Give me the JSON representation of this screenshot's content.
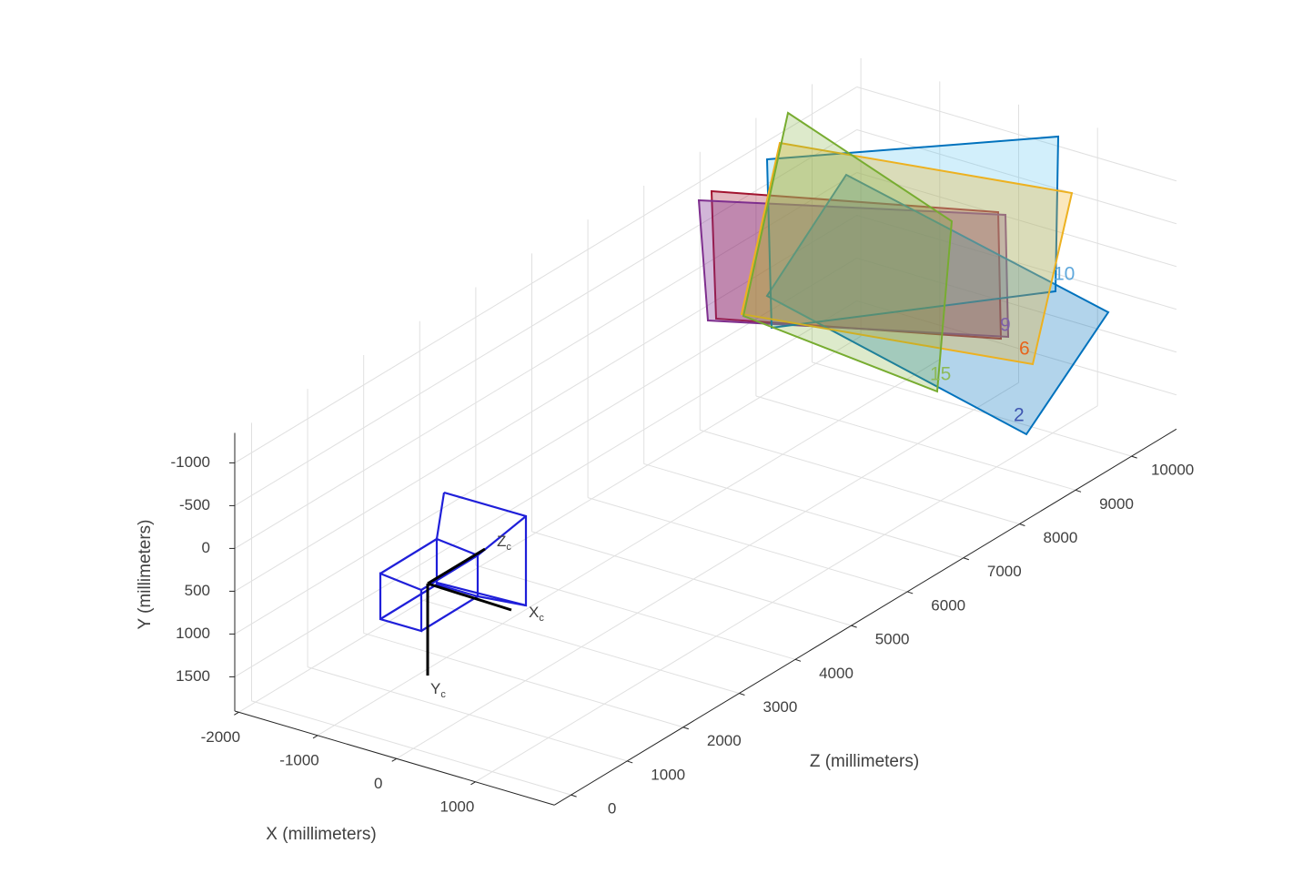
{
  "chart_data": {
    "type": "3d",
    "xlabel": "X (millimeters)",
    "ylabel": "Y (millimeters)",
    "zlabel": "Z (millimeters)",
    "xlim": [
      -2050,
      2000
    ],
    "ylim": [
      -1350,
      1900
    ],
    "zlim": [
      -300,
      10800
    ],
    "xticks": [
      -2000,
      -1000,
      0,
      1000
    ],
    "yticks": [
      -1000,
      -500,
      0,
      500,
      1000,
      1500
    ],
    "zticks": [
      0,
      1000,
      2000,
      3000,
      4000,
      5000,
      6000,
      7000,
      8000,
      9000,
      10000
    ],
    "grid": true,
    "camera_axes": [
      {
        "label": "X",
        "subscript": "c"
      },
      {
        "label": "Y",
        "subscript": "c"
      },
      {
        "label": "Z",
        "subscript": "c"
      }
    ],
    "annotations": [
      "2",
      "6",
      "9",
      "15",
      "10"
    ]
  }
}
